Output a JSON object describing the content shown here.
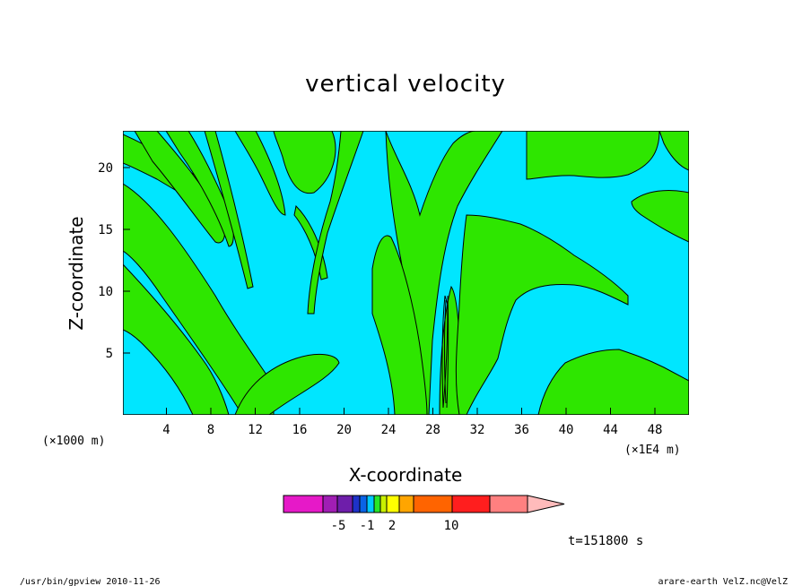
{
  "chart_data": {
    "type": "contour",
    "title": "vertical velocity",
    "xlabel": "X-coordinate",
    "ylabel": "Z-coordinate",
    "x_unit_left": "(×1000 m)",
    "x_unit_right": "(×1E4 m)",
    "xlim": [
      0,
      51
    ],
    "ylim": [
      0,
      23
    ],
    "x_ticks": [
      "4",
      "8",
      "12",
      "16",
      "20",
      "24",
      "28",
      "32",
      "36",
      "40",
      "44",
      "48"
    ],
    "y_ticks": [
      "5",
      "10",
      "15",
      "20"
    ],
    "fill_colors": {
      "negative": "#00e6ff",
      "positive": "#2ee600",
      "contour_line": "#000000"
    },
    "colorbar": {
      "colors": [
        "#e619c8",
        "#a01eb4",
        "#6e1eaa",
        "#1e32c8",
        "#0a64e6",
        "#00c8ff",
        "#28e628",
        "#c8f000",
        "#ffff00",
        "#ffa500",
        "#ff6400",
        "#ff1e1e",
        "#ff8080",
        "#ffbbbb"
      ],
      "labels": [
        "-5",
        "-1",
        "2",
        "10"
      ]
    },
    "time_label": "t=151800 s"
  },
  "footer": {
    "left": "/usr/bin/gpview  2010-11-26",
    "right": "arare-earth_VelZ.nc@VelZ"
  }
}
